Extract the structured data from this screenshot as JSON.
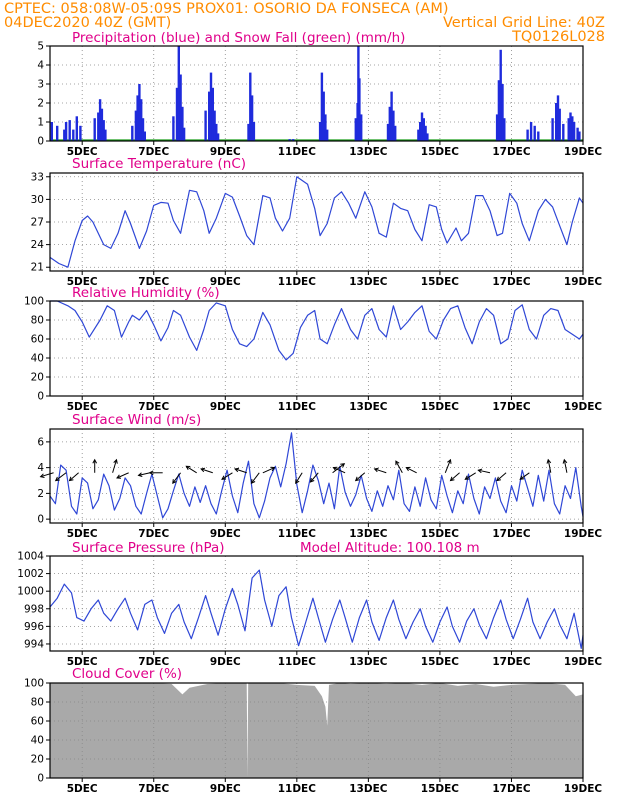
{
  "header": {
    "line1_left": "CPTEC:   058:08W-05:09S   PROX01: OSORIO DA FONSECA (AM)",
    "line2_left": "04DEC2020 40Z (GMT)",
    "line2_right": "Vertical Grid Line: 40Z",
    "line3_right": "TQ0126L028"
  },
  "colors": {
    "header": "#ff8c00",
    "title": "#e0008a",
    "precip": "#1f2bdc",
    "snow": "#1b9e1b",
    "line": "#2f47d6",
    "cloud": "#a9a9a9",
    "wind_arrow": "#000000"
  },
  "x_axis": {
    "tick_labels": [
      "5DEC",
      "7DEC",
      "9DEC",
      "11DEC",
      "13DEC",
      "15DEC",
      "17DEC",
      "19DEC"
    ],
    "tick_days": [
      5,
      7,
      9,
      11,
      13,
      15,
      17,
      19
    ],
    "range_days": [
      4.1,
      19.0
    ]
  },
  "chart_data": [
    {
      "type": "bar",
      "title": "Precipitation (blue) and Snow Fall (green) (mm/h)",
      "ylim": [
        0,
        5
      ],
      "yticks": [
        0,
        1,
        2,
        3,
        4,
        5
      ],
      "snow_value": 0,
      "events": [
        [
          4.15,
          1.0
        ],
        [
          4.3,
          0.8
        ],
        [
          4.5,
          0.6
        ],
        [
          4.55,
          1.0
        ],
        [
          4.65,
          1.1
        ],
        [
          4.75,
          0.6
        ],
        [
          4.85,
          1.3
        ],
        [
          4.95,
          0.8
        ],
        [
          5.35,
          1.2
        ],
        [
          5.45,
          1.5
        ],
        [
          5.5,
          2.2
        ],
        [
          5.55,
          1.7
        ],
        [
          5.6,
          1.1
        ],
        [
          5.65,
          0.6
        ],
        [
          6.4,
          0.8
        ],
        [
          6.5,
          1.6
        ],
        [
          6.55,
          2.4
        ],
        [
          6.6,
          3.0
        ],
        [
          6.65,
          2.2
        ],
        [
          6.7,
          1.2
        ],
        [
          6.75,
          0.5
        ],
        [
          7.55,
          1.3
        ],
        [
          7.65,
          2.8
        ],
        [
          7.7,
          5.0
        ],
        [
          7.75,
          3.5
        ],
        [
          7.8,
          1.8
        ],
        [
          7.85,
          0.7
        ],
        [
          8.45,
          1.6
        ],
        [
          8.55,
          2.6
        ],
        [
          8.6,
          3.6
        ],
        [
          8.65,
          2.8
        ],
        [
          8.7,
          1.6
        ],
        [
          8.75,
          0.9
        ],
        [
          8.8,
          0.4
        ],
        [
          9.65,
          0.9
        ],
        [
          9.7,
          3.6
        ],
        [
          9.75,
          2.4
        ],
        [
          9.8,
          1.0
        ],
        [
          10.8,
          0.1
        ],
        [
          10.9,
          0.1
        ],
        [
          11.65,
          1.0
        ],
        [
          11.7,
          3.6
        ],
        [
          11.75,
          2.6
        ],
        [
          11.8,
          1.4
        ],
        [
          11.85,
          0.6
        ],
        [
          12.65,
          1.2
        ],
        [
          12.7,
          2.0
        ],
        [
          12.72,
          5.0
        ],
        [
          12.75,
          3.3
        ],
        [
          12.8,
          1.4
        ],
        [
          13.55,
          0.9
        ],
        [
          13.6,
          1.8
        ],
        [
          13.65,
          2.6
        ],
        [
          13.7,
          1.6
        ],
        [
          13.75,
          0.8
        ],
        [
          14.4,
          0.6
        ],
        [
          14.45,
          1.0
        ],
        [
          14.5,
          1.5
        ],
        [
          14.55,
          1.2
        ],
        [
          14.6,
          0.8
        ],
        [
          14.65,
          0.4
        ],
        [
          16.6,
          1.4
        ],
        [
          16.65,
          3.2
        ],
        [
          16.7,
          4.8
        ],
        [
          16.75,
          3.0
        ],
        [
          16.8,
          1.2
        ],
        [
          17.45,
          0.6
        ],
        [
          17.55,
          1.0
        ],
        [
          17.65,
          0.8
        ],
        [
          17.75,
          0.5
        ],
        [
          18.15,
          1.2
        ],
        [
          18.25,
          2.0
        ],
        [
          18.3,
          2.4
        ],
        [
          18.35,
          1.7
        ],
        [
          18.45,
          0.9
        ],
        [
          18.6,
          1.2
        ],
        [
          18.65,
          1.5
        ],
        [
          18.7,
          1.3
        ],
        [
          18.75,
          1.0
        ],
        [
          18.85,
          0.7
        ],
        [
          18.9,
          0.5
        ]
      ]
    },
    {
      "type": "line",
      "title": "Surface Temperature (nC)",
      "ylim": [
        20.5,
        33.5
      ],
      "yticks": [
        21,
        24,
        27,
        30,
        33
      ],
      "x": [
        4.1,
        4.35,
        4.6,
        4.8,
        5.0,
        5.15,
        5.3,
        5.6,
        5.8,
        6.0,
        6.2,
        6.35,
        6.6,
        6.8,
        7.0,
        7.2,
        7.4,
        7.55,
        7.75,
        8.0,
        8.2,
        8.4,
        8.55,
        8.75,
        9.0,
        9.2,
        9.4,
        9.6,
        9.8,
        10.05,
        10.25,
        10.4,
        10.6,
        10.8,
        11.0,
        11.3,
        11.5,
        11.65,
        11.85,
        12.05,
        12.25,
        12.45,
        12.65,
        12.9,
        13.1,
        13.3,
        13.5,
        13.7,
        13.9,
        14.1,
        14.3,
        14.5,
        14.7,
        14.9,
        15.05,
        15.2,
        15.45,
        15.6,
        15.8,
        16.0,
        16.2,
        16.4,
        16.6,
        16.75,
        16.95,
        17.15,
        17.3,
        17.5,
        17.75,
        17.95,
        18.15,
        18.35,
        18.55,
        18.7,
        18.9,
        19.0
      ],
      "values": [
        22.3,
        21.5,
        21.0,
        24.5,
        27.2,
        27.8,
        27.0,
        24.0,
        23.5,
        25.5,
        28.5,
        26.8,
        23.5,
        25.8,
        29.2,
        29.6,
        29.5,
        27.2,
        25.5,
        31.2,
        31.0,
        28.5,
        25.5,
        27.5,
        30.8,
        30.3,
        27.8,
        25.2,
        24.0,
        30.5,
        30.2,
        27.5,
        25.8,
        27.5,
        33.0,
        32.0,
        28.8,
        25.2,
        26.8,
        30.2,
        31.0,
        29.5,
        27.5,
        31.0,
        29.0,
        25.5,
        25.0,
        29.5,
        28.8,
        28.5,
        26.0,
        24.5,
        29.3,
        29.0,
        26.0,
        24.2,
        26.2,
        24.5,
        25.5,
        30.5,
        30.5,
        28.5,
        25.2,
        25.5,
        30.8,
        29.5,
        26.8,
        24.5,
        28.5,
        30.0,
        29.0,
        26.5,
        24.0,
        27.0,
        30.2,
        29.5
      ]
    },
    {
      "type": "line",
      "title": "Relative Humidity (%)",
      "ylim": [
        0,
        100
      ],
      "yticks": [
        0,
        20,
        40,
        60,
        80,
        100
      ],
      "x": [
        4.1,
        4.3,
        4.6,
        4.8,
        5.0,
        5.2,
        5.5,
        5.7,
        5.9,
        6.1,
        6.3,
        6.4,
        6.6,
        6.8,
        7.0,
        7.2,
        7.4,
        7.55,
        7.75,
        8.0,
        8.2,
        8.4,
        8.55,
        8.75,
        9.0,
        9.2,
        9.4,
        9.6,
        9.8,
        10.05,
        10.25,
        10.5,
        10.7,
        10.9,
        11.1,
        11.3,
        11.5,
        11.65,
        11.85,
        12.05,
        12.25,
        12.5,
        12.7,
        12.9,
        13.1,
        13.3,
        13.5,
        13.7,
        13.9,
        14.1,
        14.3,
        14.5,
        14.7,
        14.9,
        15.1,
        15.3,
        15.5,
        15.7,
        15.9,
        16.1,
        16.3,
        16.5,
        16.7,
        16.9,
        17.1,
        17.3,
        17.5,
        17.7,
        17.9,
        18.1,
        18.3,
        18.5,
        18.7,
        18.9,
        19.0
      ],
      "values": [
        100,
        100,
        95,
        90,
        78,
        62,
        80,
        95,
        90,
        62,
        78,
        85,
        80,
        90,
        75,
        58,
        72,
        90,
        85,
        62,
        48,
        70,
        90,
        98,
        95,
        70,
        55,
        52,
        60,
        88,
        75,
        48,
        38,
        45,
        72,
        85,
        90,
        60,
        55,
        75,
        92,
        70,
        60,
        85,
        92,
        70,
        62,
        95,
        70,
        78,
        88,
        95,
        68,
        60,
        80,
        92,
        95,
        72,
        55,
        78,
        92,
        85,
        55,
        60,
        90,
        96,
        70,
        60,
        85,
        92,
        90,
        70,
        65,
        60,
        65
      ]
    },
    {
      "type": "line",
      "title": "Surface Wind (m/s)",
      "ylim": [
        -0.3,
        7.0
      ],
      "yticks": [
        0,
        2,
        4,
        6
      ],
      "x": [
        4.1,
        4.25,
        4.4,
        4.55,
        4.7,
        4.85,
        5.0,
        5.15,
        5.3,
        5.45,
        5.6,
        5.75,
        5.9,
        6.05,
        6.2,
        6.35,
        6.5,
        6.65,
        6.8,
        6.95,
        7.1,
        7.25,
        7.4,
        7.55,
        7.7,
        7.85,
        8.0,
        8.15,
        8.3,
        8.45,
        8.6,
        8.75,
        8.9,
        9.05,
        9.2,
        9.35,
        9.5,
        9.65,
        9.8,
        9.95,
        10.1,
        10.25,
        10.4,
        10.55,
        10.7,
        10.85,
        11.0,
        11.15,
        11.3,
        11.45,
        11.6,
        11.75,
        11.9,
        12.05,
        12.2,
        12.35,
        12.5,
        12.65,
        12.8,
        12.95,
        13.1,
        13.25,
        13.4,
        13.55,
        13.7,
        13.85,
        14.0,
        14.15,
        14.3,
        14.45,
        14.6,
        14.75,
        14.9,
        15.05,
        15.2,
        15.35,
        15.5,
        15.65,
        15.8,
        15.95,
        16.1,
        16.25,
        16.4,
        16.55,
        16.7,
        16.85,
        17.0,
        17.15,
        17.3,
        17.45,
        17.6,
        17.75,
        17.9,
        18.05,
        18.2,
        18.35,
        18.5,
        18.65,
        18.8,
        18.95,
        19.0
      ],
      "values": [
        1.8,
        1.2,
        4.2,
        3.8,
        1.0,
        0.4,
        3.2,
        2.8,
        0.8,
        1.5,
        3.5,
        2.6,
        0.7,
        1.6,
        3.2,
        2.6,
        1.0,
        0.4,
        2.0,
        3.5,
        1.8,
        0.1,
        0.8,
        2.2,
        3.5,
        2.0,
        1.0,
        2.5,
        1.3,
        2.6,
        1.2,
        0.4,
        2.2,
        3.8,
        1.8,
        0.5,
        2.8,
        4.5,
        1.2,
        0.1,
        1.4,
        3.2,
        4.1,
        2.5,
        4.3,
        6.7,
        2.7,
        0.5,
        2.2,
        4.2,
        3.0,
        1.2,
        2.8,
        0.8,
        4.1,
        2.1,
        1.0,
        1.9,
        3.4,
        1.6,
        0.6,
        2.2,
        1.0,
        2.6,
        1.5,
        3.8,
        1.2,
        0.6,
        2.5,
        1.0,
        3.2,
        1.5,
        0.8,
        3.4,
        1.8,
        0.5,
        2.2,
        1.2,
        3.5,
        1.6,
        0.4,
        2.5,
        1.6,
        3.2,
        1.4,
        0.5,
        2.6,
        1.4,
        3.8,
        2.4,
        1.0,
        3.4,
        1.4,
        3.8,
        1.2,
        0.4,
        2.6,
        1.6,
        4.0,
        1.0,
        0.2
      ]
    },
    {
      "type": "line",
      "title": "Surface Pressure (hPa)",
      "annotation": "Model Altitude: 100.108 m",
      "ylim": [
        993.2,
        1004
      ],
      "yticks": [
        994,
        996,
        998,
        1000,
        1002,
        1004
      ],
      "x": [
        4.1,
        4.3,
        4.5,
        4.7,
        4.85,
        5.05,
        5.25,
        5.45,
        5.6,
        5.8,
        6.0,
        6.2,
        6.35,
        6.55,
        6.75,
        6.95,
        7.1,
        7.3,
        7.5,
        7.7,
        7.85,
        8.05,
        8.25,
        8.45,
        8.6,
        8.8,
        9.0,
        9.2,
        9.35,
        9.55,
        9.75,
        9.95,
        10.1,
        10.3,
        10.5,
        10.7,
        10.85,
        11.05,
        11.25,
        11.45,
        11.6,
        11.8,
        12.0,
        12.2,
        12.35,
        12.55,
        12.75,
        12.95,
        13.1,
        13.3,
        13.5,
        13.7,
        13.85,
        14.05,
        14.25,
        14.45,
        14.6,
        14.8,
        15.0,
        15.2,
        15.35,
        15.55,
        15.75,
        15.95,
        16.1,
        16.3,
        16.5,
        16.7,
        16.85,
        17.05,
        17.25,
        17.45,
        17.6,
        17.8,
        18.0,
        18.2,
        18.35,
        18.55,
        18.75,
        18.95,
        19.0
      ],
      "values": [
        998.2,
        999.2,
        1000.8,
        999.8,
        997.0,
        996.6,
        998.0,
        999.0,
        997.5,
        996.6,
        998.0,
        999.2,
        997.5,
        995.6,
        998.5,
        999.0,
        997.0,
        995.2,
        997.5,
        998.5,
        996.5,
        994.6,
        997.0,
        999.5,
        997.5,
        995.0,
        998.0,
        1000.3,
        998.5,
        995.5,
        1001.5,
        1002.4,
        999.0,
        996.0,
        999.5,
        1000.5,
        997.0,
        993.8,
        996.5,
        999.2,
        997.0,
        994.2,
        996.8,
        999.0,
        997.0,
        994.2,
        997.0,
        999.0,
        996.5,
        994.4,
        997.0,
        999.0,
        996.8,
        994.6,
        996.5,
        998.0,
        996.0,
        994.2,
        996.5,
        998.2,
        996.0,
        994.2,
        996.6,
        998.0,
        996.2,
        994.6,
        997.0,
        999.0,
        996.8,
        994.6,
        996.8,
        999.2,
        996.5,
        994.6,
        996.5,
        998.0,
        996.2,
        994.6,
        997.5,
        993.5,
        995.0
      ]
    },
    {
      "type": "area",
      "title": "Cloud Cover (%)",
      "ylim": [
        0,
        100
      ],
      "yticks": [
        0,
        20,
        40,
        60,
        80,
        100
      ],
      "x": [
        4.1,
        4.6,
        5.0,
        5.5,
        6.0,
        6.5,
        7.0,
        7.5,
        7.8,
        8.0,
        8.5,
        9.0,
        9.5,
        9.6,
        9.62,
        9.64,
        10.0,
        10.5,
        11.0,
        11.5,
        11.7,
        11.8,
        11.85,
        11.9,
        12.2,
        12.5,
        13.0,
        13.5,
        14.0,
        14.5,
        15.0,
        15.5,
        16.0,
        16.5,
        17.0,
        17.5,
        18.0,
        18.5,
        18.8,
        19.0
      ],
      "values": [
        100,
        100,
        100,
        100,
        100,
        100,
        100,
        99,
        88,
        95,
        99,
        100,
        100,
        100,
        0,
        100,
        100,
        100,
        98,
        97,
        86,
        75,
        55,
        98,
        100,
        99,
        100,
        99,
        100,
        98,
        100,
        97,
        99,
        96,
        98,
        99,
        100,
        98,
        86,
        88
      ]
    }
  ],
  "wind_vectors": [
    {
      "x": 4.2,
      "dx": -1,
      "dy": -0.3
    },
    {
      "x": 4.55,
      "dx": -0.8,
      "dy": -0.6
    },
    {
      "x": 4.9,
      "dx": -0.7,
      "dy": -0.6
    },
    {
      "x": 5.35,
      "dx": 0.0,
      "dy": 1.0
    },
    {
      "x": 5.85,
      "dx": 0.3,
      "dy": 1.0
    },
    {
      "x": 6.3,
      "dx": -0.9,
      "dy": -0.4
    },
    {
      "x": 6.9,
      "dx": -0.9,
      "dy": -0.2
    },
    {
      "x": 7.25,
      "dx": -1,
      "dy": 0.0
    },
    {
      "x": 7.75,
      "dx": -0.6,
      "dy": -0.8
    },
    {
      "x": 8.2,
      "dx": -0.8,
      "dy": 0.5
    },
    {
      "x": 8.65,
      "dx": -0.9,
      "dy": 0.3
    },
    {
      "x": 9.2,
      "dx": -0.8,
      "dy": -0.5
    },
    {
      "x": 9.6,
      "dx": -0.9,
      "dy": 0.3
    },
    {
      "x": 9.95,
      "dx": -0.6,
      "dy": -0.8
    },
    {
      "x": 10.05,
      "dx": 0.9,
      "dy": 0.4
    },
    {
      "x": 11.15,
      "dx": -0.5,
      "dy": -0.8
    },
    {
      "x": 11.6,
      "dx": -0.6,
      "dy": -0.7
    },
    {
      "x": 12.0,
      "dx": 0.9,
      "dy": 0.7
    },
    {
      "x": 12.35,
      "dx": -0.9,
      "dy": 0.4
    },
    {
      "x": 12.9,
      "dx": -0.7,
      "dy": -0.6
    },
    {
      "x": 13.5,
      "dx": -0.9,
      "dy": 0.3
    },
    {
      "x": 13.95,
      "dx": -0.5,
      "dy": 0.9
    },
    {
      "x": 14.35,
      "dx": -0.8,
      "dy": 0.4
    },
    {
      "x": 15.15,
      "dx": 0.4,
      "dy": 1.0
    },
    {
      "x": 15.55,
      "dx": -0.7,
      "dy": -0.6
    },
    {
      "x": 16.0,
      "dx": -0.8,
      "dy": -0.5
    },
    {
      "x": 16.4,
      "dx": -0.9,
      "dy": 0.2
    },
    {
      "x": 16.85,
      "dx": -0.7,
      "dy": -0.6
    },
    {
      "x": 17.5,
      "dx": -0.7,
      "dy": -0.5
    },
    {
      "x": 18.1,
      "dx": -0.2,
      "dy": 1.0
    },
    {
      "x": 18.55,
      "dx": -0.2,
      "dy": 1.0
    }
  ]
}
